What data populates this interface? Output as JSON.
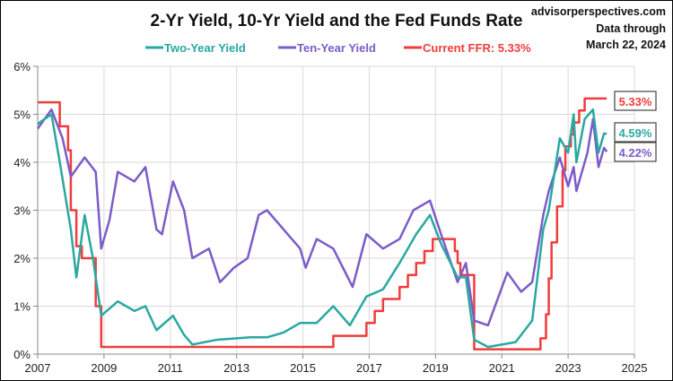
{
  "chart_data": {
    "type": "line",
    "title": "2-Yr Yield, 10-Yr Yield and the Fed Funds Rate",
    "source": "advisorperspectives.com",
    "note_line1": "Data through",
    "note_line2": "March 22, 2024",
    "xlim": [
      "2007-01",
      "2025-01"
    ],
    "ylim": [
      0,
      6
    ],
    "grid": true,
    "legend_placement": "top-center",
    "x_ticks": [
      "2007",
      "2009",
      "2011",
      "2013",
      "2015",
      "2017",
      "2019",
      "2021",
      "2023",
      "2025"
    ],
    "y_ticks": [
      "0%",
      "1%",
      "2%",
      "3%",
      "4%",
      "5%",
      "6%"
    ],
    "series": [
      {
        "name": "Two-Year Yield",
        "color": "#2aa8a0",
        "end_label": "4.59%",
        "points": [
          [
            "2007-01",
            4.8
          ],
          [
            "2007-06",
            5.0
          ],
          [
            "2007-09",
            4.0
          ],
          [
            "2008-01",
            2.6
          ],
          [
            "2008-03",
            1.6
          ],
          [
            "2008-06",
            2.9
          ],
          [
            "2008-09",
            2.0
          ],
          [
            "2008-12",
            0.8
          ],
          [
            "2009-06",
            1.1
          ],
          [
            "2009-12",
            0.9
          ],
          [
            "2010-04",
            1.0
          ],
          [
            "2010-08",
            0.5
          ],
          [
            "2011-02",
            0.8
          ],
          [
            "2011-06",
            0.4
          ],
          [
            "2011-09",
            0.2
          ],
          [
            "2012-06",
            0.3
          ],
          [
            "2013-06",
            0.35
          ],
          [
            "2013-12",
            0.35
          ],
          [
            "2014-06",
            0.45
          ],
          [
            "2014-12",
            0.65
          ],
          [
            "2015-06",
            0.65
          ],
          [
            "2015-12",
            1.0
          ],
          [
            "2016-06",
            0.6
          ],
          [
            "2016-12",
            1.2
          ],
          [
            "2017-06",
            1.35
          ],
          [
            "2017-12",
            1.9
          ],
          [
            "2018-06",
            2.5
          ],
          [
            "2018-11",
            2.9
          ],
          [
            "2019-03",
            2.3
          ],
          [
            "2019-09",
            1.6
          ],
          [
            "2019-12",
            1.6
          ],
          [
            "2020-03",
            0.3
          ],
          [
            "2020-08",
            0.15
          ],
          [
            "2021-06",
            0.25
          ],
          [
            "2021-12",
            0.7
          ],
          [
            "2022-04",
            2.6
          ],
          [
            "2022-06",
            3.0
          ],
          [
            "2022-10",
            4.5
          ],
          [
            "2023-01",
            4.2
          ],
          [
            "2023-03",
            5.0
          ],
          [
            "2023-04",
            4.0
          ],
          [
            "2023-07",
            4.9
          ],
          [
            "2023-10",
            5.1
          ],
          [
            "2023-12",
            4.2
          ],
          [
            "2024-02",
            4.6
          ],
          [
            "2024-03",
            4.59
          ]
        ]
      },
      {
        "name": "Ten-Year Yield",
        "color": "#7b5cc8",
        "end_label": "4.22%",
        "points": [
          [
            "2007-01",
            4.7
          ],
          [
            "2007-06",
            5.1
          ],
          [
            "2007-10",
            4.5
          ],
          [
            "2008-01",
            3.7
          ],
          [
            "2008-06",
            4.1
          ],
          [
            "2008-10",
            3.8
          ],
          [
            "2008-12",
            2.2
          ],
          [
            "2009-03",
            2.8
          ],
          [
            "2009-06",
            3.8
          ],
          [
            "2009-12",
            3.6
          ],
          [
            "2010-04",
            3.9
          ],
          [
            "2010-08",
            2.6
          ],
          [
            "2010-10",
            2.5
          ],
          [
            "2011-02",
            3.6
          ],
          [
            "2011-06",
            3.0
          ],
          [
            "2011-09",
            2.0
          ],
          [
            "2012-03",
            2.2
          ],
          [
            "2012-07",
            1.5
          ],
          [
            "2012-12",
            1.8
          ],
          [
            "2013-05",
            2.0
          ],
          [
            "2013-09",
            2.9
          ],
          [
            "2013-12",
            3.0
          ],
          [
            "2014-06",
            2.6
          ],
          [
            "2014-12",
            2.2
          ],
          [
            "2015-02",
            1.8
          ],
          [
            "2015-06",
            2.4
          ],
          [
            "2015-12",
            2.2
          ],
          [
            "2016-07",
            1.4
          ],
          [
            "2016-12",
            2.5
          ],
          [
            "2017-06",
            2.2
          ],
          [
            "2017-12",
            2.4
          ],
          [
            "2018-05",
            3.0
          ],
          [
            "2018-11",
            3.2
          ],
          [
            "2019-03",
            2.5
          ],
          [
            "2019-09",
            1.5
          ],
          [
            "2019-12",
            1.9
          ],
          [
            "2020-03",
            0.7
          ],
          [
            "2020-08",
            0.6
          ],
          [
            "2021-03",
            1.7
          ],
          [
            "2021-08",
            1.3
          ],
          [
            "2021-12",
            1.5
          ],
          [
            "2022-04",
            2.9
          ],
          [
            "2022-06",
            3.4
          ],
          [
            "2022-10",
            4.1
          ],
          [
            "2023-01",
            3.5
          ],
          [
            "2023-03",
            3.9
          ],
          [
            "2023-04",
            3.4
          ],
          [
            "2023-08",
            4.2
          ],
          [
            "2023-10",
            4.9
          ],
          [
            "2023-12",
            3.9
          ],
          [
            "2024-02",
            4.3
          ],
          [
            "2024-03",
            4.22
          ]
        ]
      },
      {
        "name": "Current FFR: 5.33%",
        "color": "#f03c3c",
        "end_label": "5.33%",
        "step": true,
        "points": [
          [
            "2007-01",
            5.25
          ],
          [
            "2007-09",
            4.75
          ],
          [
            "2007-12",
            4.25
          ],
          [
            "2008-01",
            3.0
          ],
          [
            "2008-03",
            2.25
          ],
          [
            "2008-05",
            2.0
          ],
          [
            "2008-10",
            1.0
          ],
          [
            "2008-12",
            0.15
          ],
          [
            "2015-12",
            0.38
          ],
          [
            "2016-12",
            0.65
          ],
          [
            "2017-03",
            0.9
          ],
          [
            "2017-06",
            1.15
          ],
          [
            "2017-12",
            1.4
          ],
          [
            "2018-03",
            1.65
          ],
          [
            "2018-06",
            1.9
          ],
          [
            "2018-09",
            2.15
          ],
          [
            "2018-12",
            2.4
          ],
          [
            "2019-08",
            2.15
          ],
          [
            "2019-09",
            1.9
          ],
          [
            "2019-10",
            1.65
          ],
          [
            "2020-03",
            0.1
          ],
          [
            "2022-03",
            0.33
          ],
          [
            "2022-05",
            0.83
          ],
          [
            "2022-06",
            1.58
          ],
          [
            "2022-07",
            2.33
          ],
          [
            "2022-09",
            3.08
          ],
          [
            "2022-11",
            3.83
          ],
          [
            "2022-12",
            4.33
          ],
          [
            "2023-02",
            4.58
          ],
          [
            "2023-03",
            4.83
          ],
          [
            "2023-05",
            5.08
          ],
          [
            "2023-07",
            5.33
          ],
          [
            "2024-03",
            5.33
          ]
        ]
      }
    ]
  }
}
